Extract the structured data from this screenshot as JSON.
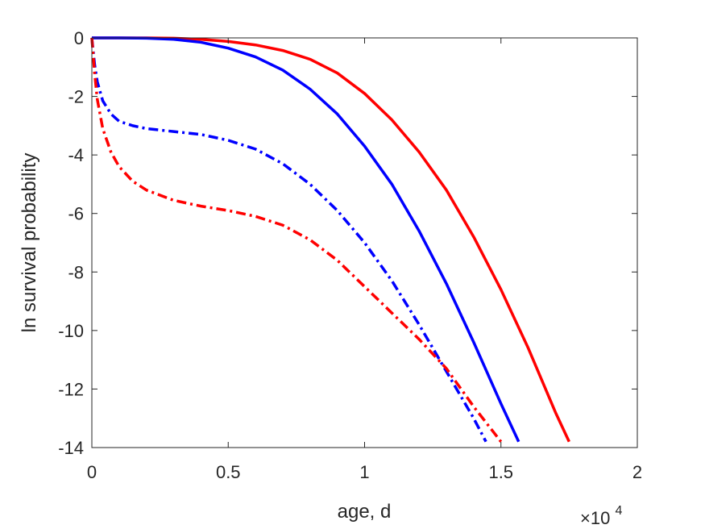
{
  "chart_data": {
    "type": "line",
    "title": "",
    "xlabel": "age, d",
    "ylabel": "ln survival probability",
    "x_exponent_label": {
      "base": "×10",
      "exp": "4"
    },
    "xlim": [
      0,
      20000
    ],
    "ylim": [
      -14,
      0
    ],
    "xticks": [
      0,
      5000,
      10000,
      15000,
      20000
    ],
    "xtick_labels": [
      "0",
      "0.5",
      "1",
      "1.5",
      "2"
    ],
    "yticks": [
      0,
      -2,
      -4,
      -6,
      -8,
      -10,
      -12,
      -14
    ],
    "ytick_labels": [
      "0",
      "-2",
      "-4",
      "-6",
      "-8",
      "-10",
      "-12",
      "-14"
    ],
    "grid": false,
    "box": true,
    "series": [
      {
        "color": "#ff0000",
        "style": "solid",
        "x": [
          0,
          1000,
          2000,
          3000,
          4000,
          5000,
          6000,
          7000,
          8000,
          9000,
          10000,
          11000,
          12000,
          13000,
          14000,
          15000,
          16000,
          17000,
          17500
        ],
        "y": [
          0,
          0,
          0,
          -0.01,
          -0.05,
          -0.12,
          -0.24,
          -0.43,
          -0.73,
          -1.2,
          -1.9,
          -2.8,
          -3.9,
          -5.2,
          -6.8,
          -8.6,
          -10.6,
          -12.8,
          -13.8
        ]
      },
      {
        "color": "#0000ff",
        "style": "solid",
        "x": [
          0,
          1000,
          2000,
          3000,
          4000,
          5000,
          6000,
          7000,
          8000,
          9000,
          10000,
          11000,
          12000,
          13000,
          14000,
          15000,
          15650
        ],
        "y": [
          0,
          0,
          -0.01,
          -0.05,
          -0.15,
          -0.35,
          -0.65,
          -1.1,
          -1.75,
          -2.6,
          -3.7,
          -5.0,
          -6.6,
          -8.4,
          -10.4,
          -12.5,
          -13.8
        ]
      },
      {
        "color": "#0000ff",
        "style": "dashdot",
        "x": [
          0,
          100,
          200,
          400,
          700,
          1000,
          1500,
          2000,
          3000,
          4000,
          5000,
          6000,
          7000,
          8000,
          9000,
          10000,
          11000,
          12000,
          13000,
          14000,
          14450
        ],
        "y": [
          0,
          -0.9,
          -1.5,
          -2.15,
          -2.6,
          -2.85,
          -3.0,
          -3.1,
          -3.2,
          -3.3,
          -3.5,
          -3.8,
          -4.3,
          -5.0,
          -5.9,
          -7.0,
          -8.3,
          -9.8,
          -11.4,
          -13.0,
          -13.8
        ]
      },
      {
        "color": "#ff0000",
        "style": "dashdot",
        "x": [
          0,
          100,
          200,
          400,
          700,
          1000,
          1500,
          2000,
          3000,
          4000,
          5000,
          6000,
          7000,
          8000,
          9000,
          10000,
          11000,
          12000,
          13000,
          14000,
          15000
        ],
        "y": [
          0,
          -1.2,
          -2.1,
          -3.1,
          -3.9,
          -4.4,
          -4.9,
          -5.2,
          -5.55,
          -5.75,
          -5.9,
          -6.1,
          -6.4,
          -6.9,
          -7.6,
          -8.5,
          -9.4,
          -10.3,
          -11.3,
          -12.6,
          -13.8
        ]
      }
    ]
  }
}
